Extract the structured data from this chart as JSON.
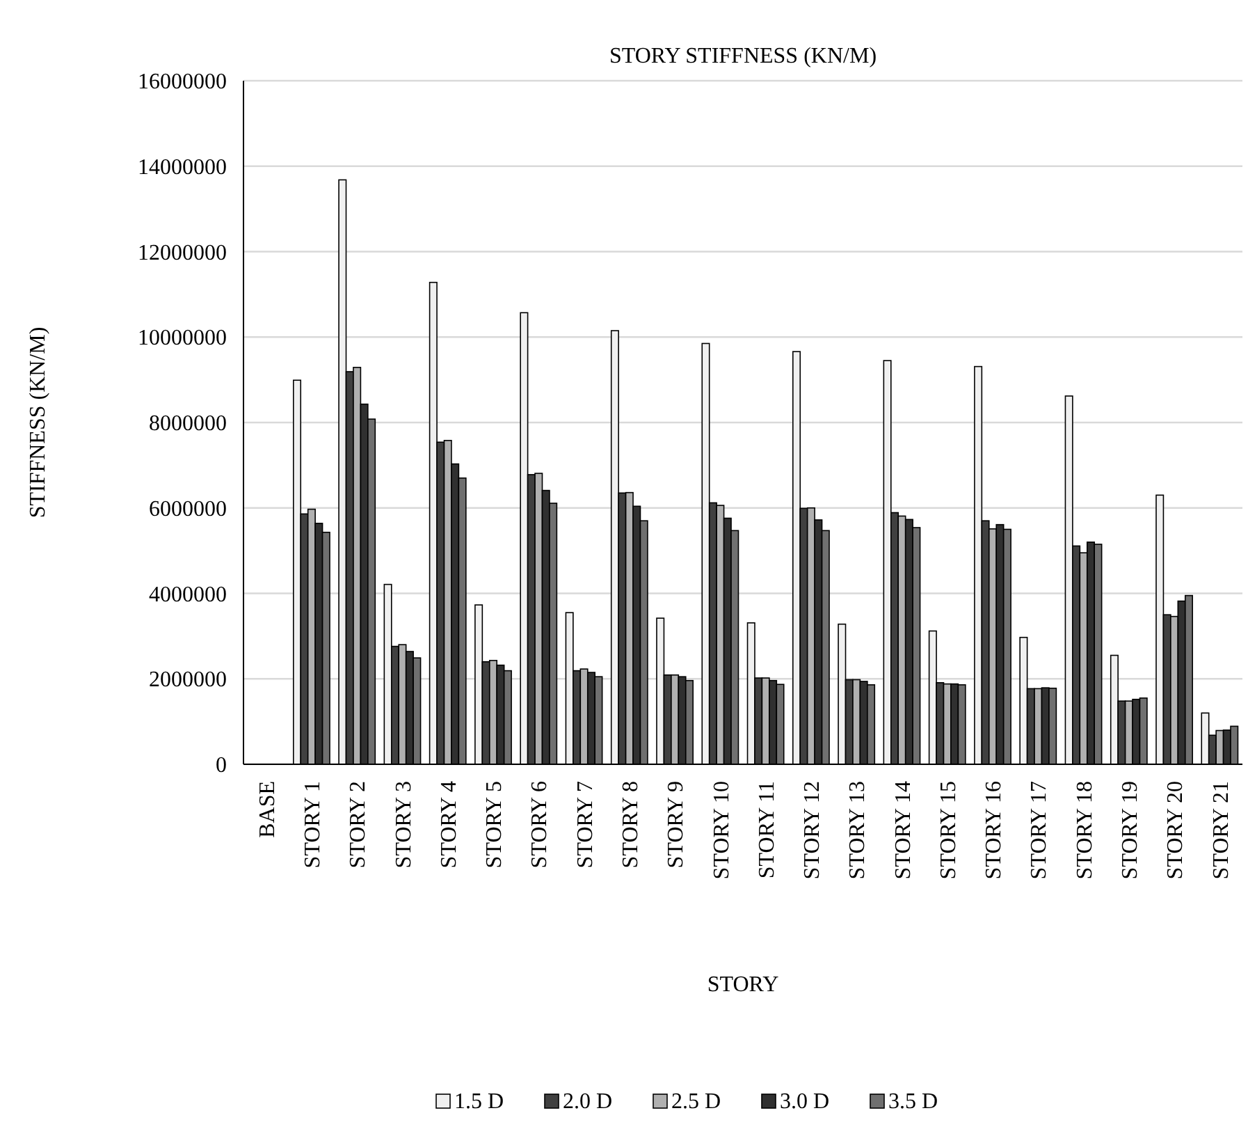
{
  "chart_data": {
    "type": "bar",
    "title": "STORY STIFFNESS (KN/M)",
    "xlabel": "STORY",
    "ylabel": "STIFFNESS (KN/M)",
    "categories": [
      "BASE",
      "STORY 1",
      "STORY 2",
      "STORY 3",
      "STORY 4",
      "STORY 5",
      "STORY 6",
      "STORY 7",
      "STORY 8",
      "STORY 9",
      "STORY 10",
      "STORY 11",
      "STORY 12",
      "STORY 13",
      "STORY 14",
      "STORY 15",
      "STORY 16",
      "STORY 17",
      "STORY 18",
      "STORY 19",
      "STORY 20",
      "STORY 21"
    ],
    "series": [
      {
        "name": "1.5 D",
        "color": "#f0f0f0",
        "values": [
          0,
          8990000,
          13680000,
          4210000,
          11280000,
          3730000,
          10570000,
          3550000,
          10150000,
          3420000,
          9850000,
          3310000,
          9660000,
          3280000,
          9450000,
          3120000,
          9310000,
          2970000,
          8620000,
          2550000,
          6300000,
          1200000
        ]
      },
      {
        "name": "2.0 D",
        "color": "#404040",
        "values": [
          0,
          5860000,
          9190000,
          2760000,
          7540000,
          2400000,
          6780000,
          2190000,
          6350000,
          2090000,
          6120000,
          2020000,
          5990000,
          1980000,
          5890000,
          1910000,
          5700000,
          1770000,
          5110000,
          1480000,
          3500000,
          680000
        ]
      },
      {
        "name": "2.5 D",
        "color": "#b0b0b0",
        "values": [
          0,
          5970000,
          9290000,
          2800000,
          7580000,
          2430000,
          6810000,
          2230000,
          6360000,
          2090000,
          6060000,
          2020000,
          6000000,
          1980000,
          5810000,
          1880000,
          5510000,
          1770000,
          4950000,
          1480000,
          3460000,
          790000
        ]
      },
      {
        "name": "3.0 D",
        "color": "#303030",
        "values": [
          0,
          5640000,
          8430000,
          2640000,
          7030000,
          2320000,
          6410000,
          2150000,
          6040000,
          2050000,
          5760000,
          1960000,
          5720000,
          1940000,
          5730000,
          1880000,
          5610000,
          1790000,
          5200000,
          1520000,
          3820000,
          800000
        ]
      },
      {
        "name": "3.5 D",
        "color": "#707070",
        "values": [
          0,
          5430000,
          8080000,
          2490000,
          6700000,
          2190000,
          6110000,
          2050000,
          5700000,
          1960000,
          5470000,
          1870000,
          5470000,
          1860000,
          5540000,
          1860000,
          5500000,
          1780000,
          5150000,
          1550000,
          3950000,
          890000
        ]
      }
    ],
    "ylim": [
      0,
      16000000
    ],
    "yticks": [
      0,
      2000000,
      4000000,
      6000000,
      8000000,
      10000000,
      12000000,
      14000000,
      16000000
    ],
    "grid": "y",
    "legend": "bottom"
  }
}
